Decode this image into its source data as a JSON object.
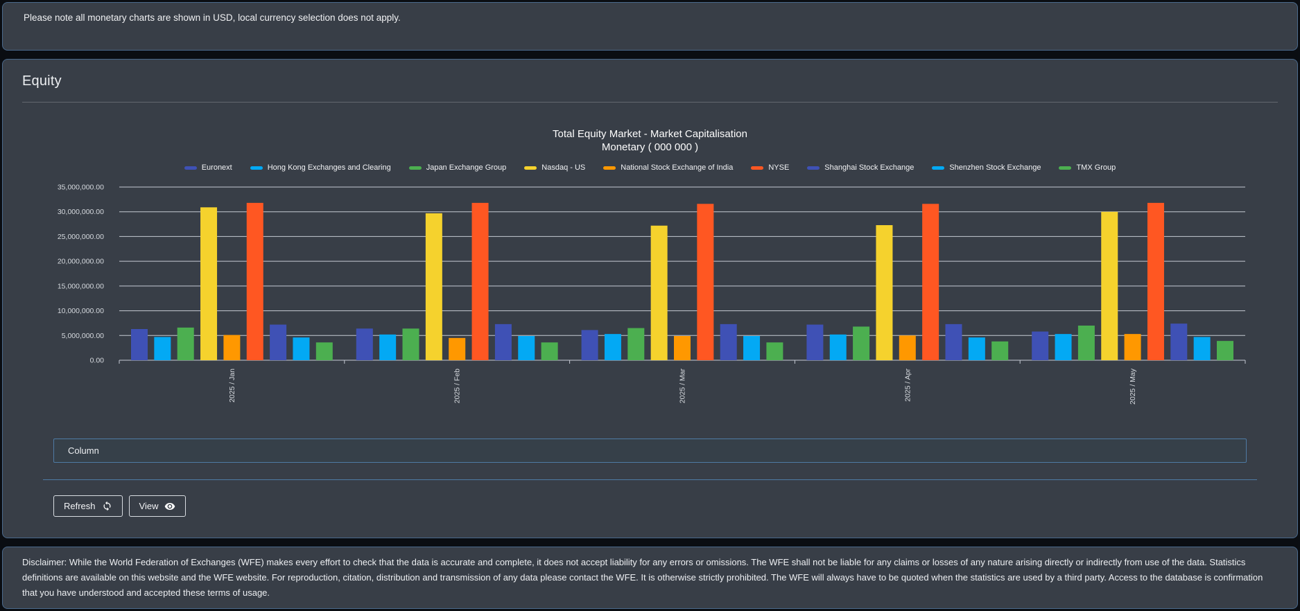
{
  "banner": {
    "text": "Please note all monetary charts are shown in USD, local currency selection does not apply."
  },
  "equity": {
    "title": "Equity"
  },
  "controls": {
    "column_label": "Column",
    "refresh_label": "Refresh",
    "view_label": "View",
    "icons": {
      "refresh": "refresh-icon",
      "view": "eye-icon"
    }
  },
  "chart_data": {
    "type": "bar",
    "title": "Total Equity Market - Market Capitalisation",
    "subtitle": "Monetary ( 000 000 )",
    "legend_position": "top",
    "grid": true,
    "x_label_rotation": -90,
    "categories": [
      "2025 / Jan",
      "2025 / Feb",
      "2025 / Mar",
      "2025 / Apr",
      "2025 / May"
    ],
    "series": [
      {
        "name": "Euronext",
        "color": "#3F51B5",
        "values": [
          6300000,
          6400000,
          6100000,
          7200000,
          5800000
        ]
      },
      {
        "name": "Hong Kong Exchanges and Clearing",
        "color": "#03A9F4",
        "values": [
          4700000,
          5200000,
          5300000,
          5200000,
          5300000
        ]
      },
      {
        "name": "Japan Exchange Group",
        "color": "#4CAF50",
        "values": [
          6600000,
          6400000,
          6500000,
          6800000,
          7000000
        ]
      },
      {
        "name": "Nasdaq - US",
        "color": "#F5D22D",
        "values": [
          30900000,
          29700000,
          27200000,
          27300000,
          30000000
        ]
      },
      {
        "name": "National Stock Exchange of India",
        "color": "#FF9800",
        "values": [
          5100000,
          4500000,
          4900000,
          5000000,
          5300000
        ]
      },
      {
        "name": "NYSE",
        "color": "#FF5722",
        "values": [
          31800000,
          31800000,
          31600000,
          31600000,
          31800000
        ]
      },
      {
        "name": "Shanghai Stock Exchange",
        "color": "#3F51B5",
        "values": [
          7200000,
          7300000,
          7300000,
          7300000,
          7400000
        ]
      },
      {
        "name": "Shenzhen Stock Exchange",
        "color": "#03A9F4",
        "values": [
          4600000,
          4900000,
          4900000,
          4600000,
          4700000
        ]
      },
      {
        "name": "TMX Group",
        "color": "#4CAF50",
        "values": [
          3600000,
          3600000,
          3600000,
          3800000,
          3900000
        ]
      }
    ],
    "ylim": [
      0,
      35000000
    ],
    "y_ticks": [
      {
        "value": 35000000,
        "label": "35,000,000.00"
      },
      {
        "value": 30000000,
        "label": "30,000,000.00"
      },
      {
        "value": 25000000,
        "label": "25,000,000.00"
      },
      {
        "value": 20000000,
        "label": "20,000,000.00"
      },
      {
        "value": 15000000,
        "label": "15,000,000.00"
      },
      {
        "value": 10000000,
        "label": "10,000,000.00"
      },
      {
        "value": 5000000,
        "label": "5,000,000.00"
      },
      {
        "value": 0,
        "label": "0.00"
      }
    ]
  },
  "colors": {
    "page_bg": "#0A0D12",
    "panel_bg": "#383E47",
    "panel_border": "#4A698C",
    "accent_border": "#4E7BA4",
    "grid_line": "#C6CBD4",
    "text": "#EDEFF2"
  },
  "disclaimer": {
    "text": "Disclaimer: While the World Federation of Exchanges (WFE) makes every effort to check that the data is accurate and complete, it does not accept liability for any errors or omissions. The WFE shall not be liable for any claims or losses of any nature arising directly or indirectly from use of the data. Statistics definitions are available on this website and the WFE website. For reproduction, citation, distribution and transmission of any data please contact the WFE. It is otherwise strictly prohibited. The WFE will always have to be quoted when the statistics are used by a third party. Access to the database is confirmation that you have understood and accepted these terms of usage."
  }
}
